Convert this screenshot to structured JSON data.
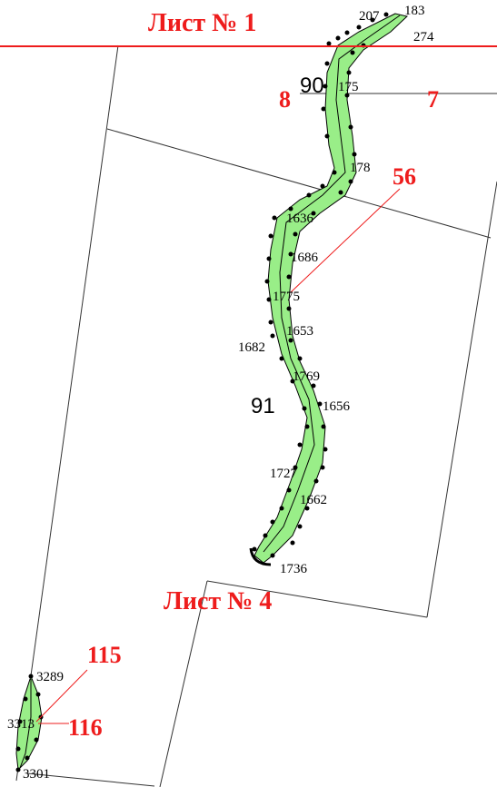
{
  "sheets": {
    "sheet1": "Лист № 1",
    "sheet4": "Лист № 4"
  },
  "parcels": {
    "p90": "90",
    "p91": "91"
  },
  "callouts": {
    "c8": "8",
    "c7": "7",
    "c56": "56",
    "c115": "115",
    "c116": "116"
  },
  "points": {
    "p207": "207",
    "p183": "183",
    "p274": "274",
    "p175": "175",
    "p178": "178",
    "p1636": "1636",
    "p1686": "1686",
    "p1775": "1775",
    "p1653": "1653",
    "p1682": "1682",
    "p1769": "1769",
    "p1656": "1656",
    "p1727": "1727",
    "p1662": "1662",
    "p1736": "1736",
    "p3289": "3289",
    "p3313": "3313",
    "p3301": "3301"
  },
  "colors": {
    "corridor_fill": "#99ee88",
    "sheet_border": "#ee1c1c",
    "callout": "#ee1c1c",
    "boundary": "#333333"
  }
}
